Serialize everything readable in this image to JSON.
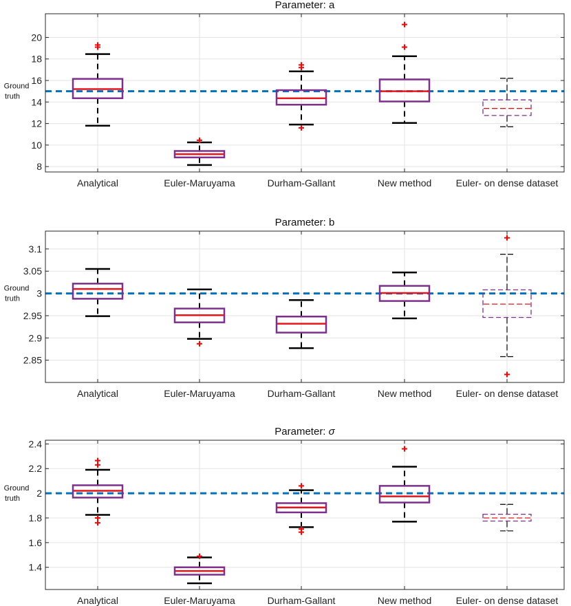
{
  "chart_data": [
    {
      "type": "box",
      "title": "Parameter: a",
      "title_prefix": "Parameter: ",
      "title_symbol": "a",
      "title_symbol_italic": false,
      "categories": [
        "Analytical",
        "Euler-Maruyama",
        "Durham-Gallant",
        "New method",
        "Euler- on dense dataset"
      ],
      "ylim": [
        7.5,
        22.2
      ],
      "yticks": [
        8,
        10,
        12,
        14,
        16,
        18,
        20
      ],
      "ytick_labels": [
        "8",
        "10",
        "12",
        "14",
        "16",
        "18",
        "20"
      ],
      "ground_truth": 15,
      "ground_truth_label_line1": "Ground",
      "ground_truth_label_line2": "truth",
      "boxes": [
        {
          "whisker_low": 11.8,
          "q1": 14.35,
          "median": 15.2,
          "q3": 16.15,
          "whisker_high": 18.45,
          "outliers": [
            19.1,
            19.3
          ],
          "dashed": false
        },
        {
          "whisker_low": 8.15,
          "q1": 8.85,
          "median": 9.15,
          "q3": 9.45,
          "whisker_high": 10.25,
          "outliers": [
            10.45
          ],
          "dashed": false
        },
        {
          "whisker_low": 11.9,
          "q1": 13.75,
          "median": 14.35,
          "q3": 15.1,
          "whisker_high": 16.85,
          "outliers": [
            11.6,
            17.2,
            17.45
          ],
          "dashed": false
        },
        {
          "whisker_low": 12.05,
          "q1": 14.05,
          "median": 15.0,
          "q3": 16.1,
          "whisker_high": 18.25,
          "outliers": [
            19.1,
            21.2
          ],
          "dashed": false
        },
        {
          "whisker_low": 11.7,
          "q1": 12.75,
          "median": 13.4,
          "q3": 14.2,
          "whisker_high": 16.2,
          "outliers": [],
          "dashed": true
        }
      ]
    },
    {
      "type": "box",
      "title": "Parameter: b",
      "title_prefix": "Parameter: ",
      "title_symbol": "b",
      "title_symbol_italic": false,
      "categories": [
        "Analytical",
        "Euler-Maruyama",
        "Durham-Gallant",
        "New method",
        "Euler- on dense dataset"
      ],
      "ylim": [
        2.8,
        3.14
      ],
      "yticks": [
        2.85,
        2.9,
        2.95,
        3.0,
        3.05,
        3.1
      ],
      "ytick_labels": [
        "2.85",
        "2.9",
        "2.95",
        "3",
        "3.05",
        "3.1"
      ],
      "ground_truth": 3.0,
      "ground_truth_label_line1": "Ground",
      "ground_truth_label_line2": "truth",
      "boxes": [
        {
          "whisker_low": 2.949,
          "q1": 2.988,
          "median": 3.01,
          "q3": 3.022,
          "whisker_high": 3.055,
          "outliers": [],
          "dashed": false
        },
        {
          "whisker_low": 2.898,
          "q1": 2.935,
          "median": 2.951,
          "q3": 2.966,
          "whisker_high": 3.009,
          "outliers": [
            2.887
          ],
          "dashed": false
        },
        {
          "whisker_low": 2.877,
          "q1": 2.912,
          "median": 2.932,
          "q3": 2.948,
          "whisker_high": 2.985,
          "outliers": [],
          "dashed": false
        },
        {
          "whisker_low": 2.944,
          "q1": 2.983,
          "median": 3.001,
          "q3": 3.017,
          "whisker_high": 3.047,
          "outliers": [],
          "dashed": false
        },
        {
          "whisker_low": 2.858,
          "q1": 2.946,
          "median": 2.976,
          "q3": 3.008,
          "whisker_high": 3.088,
          "outliers": [
            2.818,
            3.125
          ],
          "dashed": true
        }
      ]
    },
    {
      "type": "box",
      "title": "Parameter: σ",
      "title_prefix": "Parameter: ",
      "title_symbol": "σ",
      "title_symbol_italic": true,
      "categories": [
        "Analytical",
        "Euler-Maruyama",
        "Durham-Gallant",
        "New method",
        "Euler- on dense dataset"
      ],
      "ylim": [
        1.22,
        2.43
      ],
      "yticks": [
        1.4,
        1.6,
        1.8,
        2.0,
        2.2,
        2.4
      ],
      "ytick_labels": [
        "1.4",
        "1.6",
        "1.8",
        "2",
        "2.2",
        "2.4"
      ],
      "ground_truth": 2.0,
      "ground_truth_label_line1": "Ground",
      "ground_truth_label_line2": "truth",
      "boxes": [
        {
          "whisker_low": 1.825,
          "q1": 1.965,
          "median": 2.02,
          "q3": 2.065,
          "whisker_high": 2.19,
          "outliers": [
            1.76,
            1.8,
            2.23,
            2.265
          ],
          "dashed": false
        },
        {
          "whisker_low": 1.27,
          "q1": 1.34,
          "median": 1.37,
          "q3": 1.4,
          "whisker_high": 1.48,
          "outliers": [
            1.49
          ],
          "dashed": false
        },
        {
          "whisker_low": 1.725,
          "q1": 1.845,
          "median": 1.885,
          "q3": 1.92,
          "whisker_high": 2.025,
          "outliers": [
            1.685,
            1.71,
            2.06
          ],
          "dashed": false
        },
        {
          "whisker_low": 1.77,
          "q1": 1.925,
          "median": 1.975,
          "q3": 2.06,
          "whisker_high": 2.215,
          "outliers": [
            2.36
          ],
          "dashed": false
        },
        {
          "whisker_low": 1.695,
          "q1": 1.775,
          "median": 1.8,
          "q3": 1.83,
          "whisker_high": 1.91,
          "outliers": [],
          "dashed": true
        }
      ]
    }
  ],
  "colors": {
    "box": "#7e2f8e",
    "median": "#e8141a",
    "outlier": "#ff0000",
    "whisker": "#000000",
    "ground_truth": "#0072bd",
    "grid": "#e3e3e3",
    "axes": "#262626"
  }
}
